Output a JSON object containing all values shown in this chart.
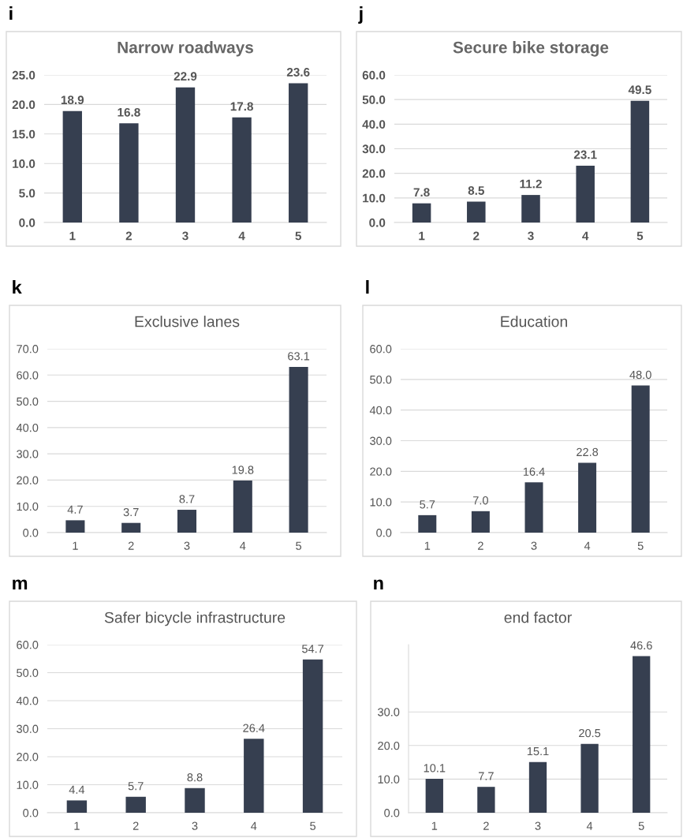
{
  "chart_data": [
    {
      "type": "bar",
      "title": "Narrow roadways",
      "annotations": [
        "i"
      ],
      "categories": [
        "1",
        "2",
        "3",
        "4",
        "5"
      ],
      "values": [
        18.9,
        16.8,
        22.9,
        17.8,
        23.6
      ],
      "color": "#363f50",
      "data_labels": true,
      "grid": "y",
      "ylim": [
        0,
        25
      ],
      "yticks": [
        {
          "value": 0,
          "label": "0.0"
        },
        {
          "value": 5,
          "label": "5.0"
        },
        {
          "value": 10,
          "label": "10.0"
        },
        {
          "value": 15,
          "label": "15.0"
        },
        {
          "value": 20,
          "label": "20.0"
        },
        {
          "value": 25,
          "label": "25.0"
        }
      ]
    },
    {
      "type": "bar",
      "title": "Secure bike storage",
      "annotations": [
        "j"
      ],
      "categories": [
        "1",
        "2",
        "3",
        "4",
        "5"
      ],
      "values": [
        7.8,
        8.5,
        11.2,
        23.1,
        49.5
      ],
      "color": "#363f50",
      "data_labels": true,
      "grid": "y",
      "ylim": [
        0,
        60
      ],
      "yticks": [
        {
          "value": 0,
          "label": "0.0"
        },
        {
          "value": 10,
          "label": "10.0"
        },
        {
          "value": 20,
          "label": "20.0"
        },
        {
          "value": 30,
          "label": "30.0"
        },
        {
          "value": 40,
          "label": "40.0"
        },
        {
          "value": 50,
          "label": "50.0"
        },
        {
          "value": 60,
          "label": "60.0"
        }
      ]
    },
    {
      "type": "bar",
      "title": "Exclusive lanes",
      "annotations": [
        "k"
      ],
      "categories": [
        "1",
        "2",
        "3",
        "4",
        "5"
      ],
      "values": [
        4.7,
        3.7,
        8.7,
        19.8,
        63.1
      ],
      "color": "#363f50",
      "data_labels": true,
      "grid": "y",
      "ylim": [
        0,
        70
      ],
      "yticks": [
        {
          "value": 0,
          "label": "0.0"
        },
        {
          "value": 10,
          "label": "10.0"
        },
        {
          "value": 20,
          "label": "20.0"
        },
        {
          "value": 30,
          "label": "30.0"
        },
        {
          "value": 40,
          "label": "40.0"
        },
        {
          "value": 50,
          "label": "50.0"
        },
        {
          "value": 60,
          "label": "60.0"
        },
        {
          "value": 70,
          "label": "70.0"
        }
      ]
    },
    {
      "type": "bar",
      "title": "Education",
      "annotations": [
        "l"
      ],
      "categories": [
        "1",
        "2",
        "3",
        "4",
        "5"
      ],
      "values": [
        5.7,
        7.0,
        16.4,
        22.8,
        48.0
      ],
      "color": "#363f50",
      "value_labels": [
        "5.7",
        "7.0",
        "16.4",
        "22.8",
        "48.0"
      ],
      "grid": "y",
      "ylim": [
        0,
        60
      ],
      "yticks": [
        {
          "value": 0,
          "label": "0.0"
        },
        {
          "value": 10,
          "label": "10.0"
        },
        {
          "value": 20,
          "label": "20.0"
        },
        {
          "value": 30,
          "label": "30.0"
        },
        {
          "value": 40,
          "label": "40.0"
        },
        {
          "value": 50,
          "label": "50.0"
        },
        {
          "value": 60,
          "label": "60.0"
        }
      ]
    },
    {
      "type": "bar",
      "title": "Safer bicycle infrastructure",
      "annotations": [
        "m"
      ],
      "categories": [
        "1",
        "2",
        "3",
        "4",
        "5"
      ],
      "values": [
        4.4,
        5.7,
        8.8,
        26.4,
        54.7
      ],
      "color": "#363f50",
      "data_labels": true,
      "grid": "y",
      "ylim": [
        0,
        60
      ],
      "yticks": [
        {
          "value": 0,
          "label": "0.0"
        },
        {
          "value": 10,
          "label": "10.0"
        },
        {
          "value": 20,
          "label": "20.0"
        },
        {
          "value": 30,
          "label": "30.0"
        },
        {
          "value": 40,
          "label": "40.0"
        },
        {
          "value": 50,
          "label": "50.0"
        },
        {
          "value": 60,
          "label": "60.0"
        }
      ]
    },
    {
      "type": "bar",
      "title": "end factor",
      "annotations": [
        "n"
      ],
      "categories": [
        "1",
        "2",
        "3",
        "4",
        "5"
      ],
      "values": [
        10.1,
        7.7,
        15.1,
        20.5,
        46.6
      ],
      "color": "#363f50",
      "data_labels": true,
      "grid": "y",
      "ylim": [
        0,
        50
      ],
      "yticks": [
        {
          "value": 0,
          "label": "0.0"
        },
        {
          "value": 10,
          "label": "10.0"
        },
        {
          "value": 20,
          "label": "20.0"
        },
        {
          "value": 30,
          "label": "30.0"
        }
      ]
    }
  ]
}
